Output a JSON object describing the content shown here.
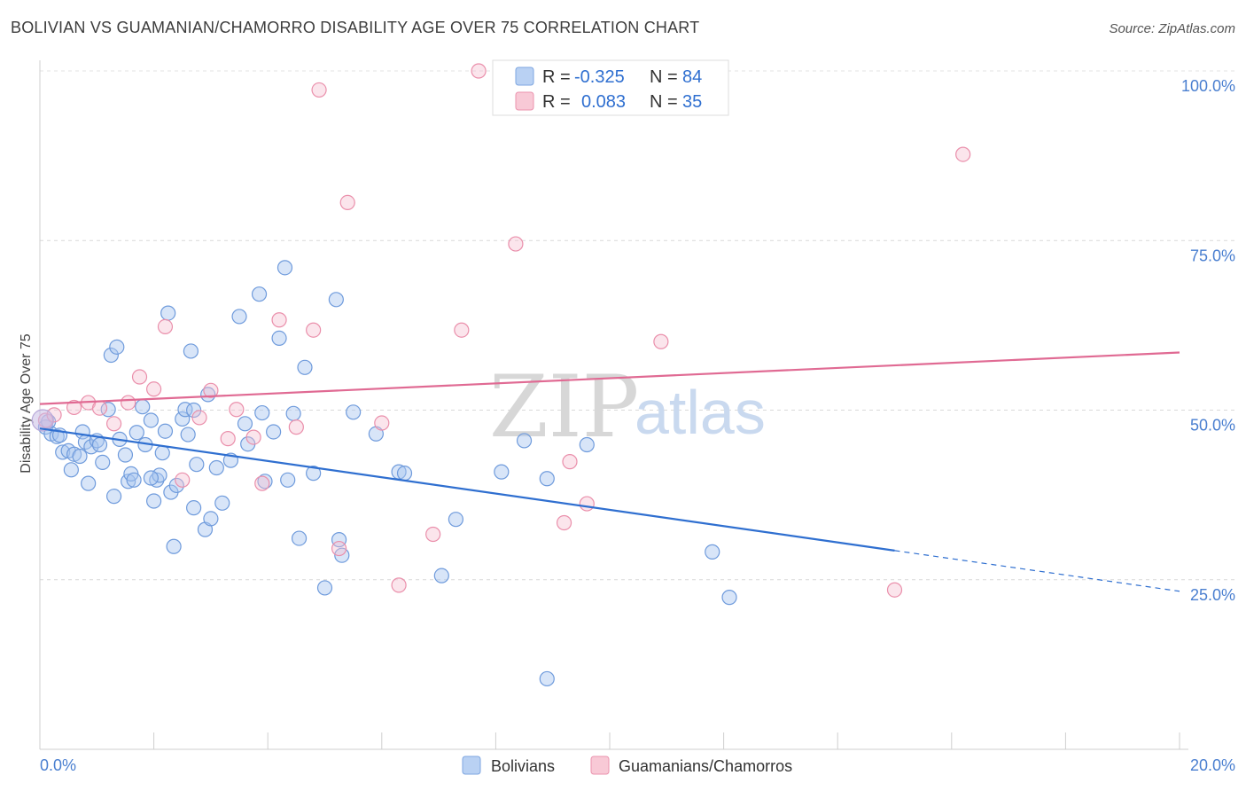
{
  "header": {
    "title": "BOLIVIAN VS GUAMANIAN/CHAMORRO DISABILITY AGE OVER 75 CORRELATION CHART",
    "source": "Source: ZipAtlas.com"
  },
  "watermark": {
    "part1": "ZIP",
    "part2": "atlas"
  },
  "legend_top": [
    {
      "r_label": "R =",
      "r_value": "-0.325",
      "n_label": "N =",
      "n_value": "84",
      "color": "#a9c6f0"
    },
    {
      "r_label": "R =",
      "r_value": "0.083",
      "n_label": "N =",
      "n_value": "35",
      "color": "#f4b6c8"
    }
  ],
  "legend_bottom": [
    {
      "label": "Bolivians",
      "color": "#a9c6f0"
    },
    {
      "label": "Guamanians/Chamorros",
      "color": "#f4b6c8"
    }
  ],
  "chart_data": {
    "type": "scatter",
    "title": "BOLIVIAN VS GUAMANIAN/CHAMORRO DISABILITY AGE OVER 75 CORRELATION CHART",
    "ylabel": "Disability Age Over 75",
    "xlabel": "",
    "xlim": [
      0,
      20
    ],
    "ylim": [
      0,
      103
    ],
    "x_tick_labels": [
      "0.0%",
      "20.0%"
    ],
    "y_tick_labels": [
      "25.0%",
      "50.0%",
      "75.0%",
      "100.0%"
    ],
    "y_ticks": [
      25,
      50,
      75,
      100
    ],
    "grid": "horizontal dashed",
    "legend_position": "top-center",
    "colors": {
      "bolivians": "#5b8fd6",
      "guamanians": "#e8799c",
      "bolivians_line": "#2f6fd0",
      "guamanians_line": "#e06a93"
    },
    "series": [
      {
        "name": "Bolivians",
        "r": -0.325,
        "n": 84,
        "trend": {
          "x0": 0,
          "y0": 47.3,
          "x1": 15.0,
          "y1": 29.3,
          "dash_to_x": 20,
          "dash_to_y": 23.3
        },
        "points": [
          [
            0.1,
            47.5
          ],
          [
            0.2,
            46.5
          ],
          [
            0.3,
            46.1
          ],
          [
            0.4,
            43.8
          ],
          [
            0.35,
            46.3
          ],
          [
            0.5,
            44.0
          ],
          [
            0.6,
            43.5
          ],
          [
            0.55,
            41.2
          ],
          [
            0.7,
            43.2
          ],
          [
            0.75,
            46.8
          ],
          [
            0.8,
            45.3
          ],
          [
            0.85,
            39.2
          ],
          [
            0.9,
            44.6
          ],
          [
            1.0,
            45.5
          ],
          [
            1.05,
            44.9
          ],
          [
            1.1,
            42.3
          ],
          [
            1.2,
            50.1
          ],
          [
            1.25,
            58.1
          ],
          [
            1.3,
            37.3
          ],
          [
            1.35,
            59.3
          ],
          [
            1.4,
            45.7
          ],
          [
            1.5,
            43.4
          ],
          [
            1.55,
            39.5
          ],
          [
            1.6,
            40.6
          ],
          [
            1.65,
            39.7
          ],
          [
            1.7,
            46.7
          ],
          [
            1.8,
            50.5
          ],
          [
            1.85,
            44.9
          ],
          [
            1.95,
            48.5
          ],
          [
            2.0,
            36.6
          ],
          [
            2.05,
            39.7
          ],
          [
            2.1,
            40.4
          ],
          [
            2.15,
            43.7
          ],
          [
            2.2,
            46.9
          ],
          [
            2.25,
            64.3
          ],
          [
            2.3,
            37.9
          ],
          [
            2.35,
            29.9
          ],
          [
            2.4,
            38.9
          ],
          [
            2.5,
            48.7
          ],
          [
            2.55,
            50.1
          ],
          [
            2.6,
            46.4
          ],
          [
            2.65,
            58.7
          ],
          [
            2.7,
            35.6
          ],
          [
            2.75,
            42.0
          ],
          [
            2.9,
            32.4
          ],
          [
            2.95,
            52.3
          ],
          [
            3.0,
            34.0
          ],
          [
            3.1,
            41.5
          ],
          [
            3.2,
            36.3
          ],
          [
            3.35,
            42.6
          ],
          [
            3.5,
            63.8
          ],
          [
            3.65,
            45.0
          ],
          [
            3.85,
            67.1
          ],
          [
            3.9,
            49.6
          ],
          [
            3.95,
            39.5
          ],
          [
            4.1,
            46.8
          ],
          [
            4.2,
            60.6
          ],
          [
            4.3,
            71.0
          ],
          [
            4.35,
            39.7
          ],
          [
            4.45,
            49.5
          ],
          [
            4.55,
            31.1
          ],
          [
            4.65,
            56.3
          ],
          [
            4.8,
            40.7
          ],
          [
            5.0,
            23.8
          ],
          [
            5.2,
            66.3
          ],
          [
            5.25,
            30.9
          ],
          [
            5.3,
            28.6
          ],
          [
            5.5,
            49.7
          ],
          [
            5.9,
            46.5
          ],
          [
            6.3,
            40.9
          ],
          [
            6.4,
            40.7
          ],
          [
            7.05,
            25.6
          ],
          [
            7.3,
            33.9
          ],
          [
            8.1,
            40.9
          ],
          [
            8.5,
            45.5
          ],
          [
            8.9,
            39.9
          ],
          [
            9.6,
            44.9
          ],
          [
            8.9,
            10.4
          ],
          [
            11.8,
            29.1
          ],
          [
            12.1,
            22.4
          ],
          [
            0.15,
            48.3
          ],
          [
            1.95,
            40.0
          ],
          [
            2.7,
            50.0
          ],
          [
            3.6,
            48.0
          ]
        ]
      },
      {
        "name": "Guamanians/Chamorros",
        "r": 0.083,
        "n": 35,
        "trend": {
          "x0": 0,
          "y0": 50.9,
          "x1": 20,
          "y1": 58.5
        },
        "points": [
          [
            0.1,
            48.5
          ],
          [
            0.25,
            49.3
          ],
          [
            0.6,
            50.4
          ],
          [
            0.85,
            51.1
          ],
          [
            1.05,
            50.3
          ],
          [
            1.3,
            48.0
          ],
          [
            1.55,
            51.1
          ],
          [
            1.75,
            54.9
          ],
          [
            2.0,
            53.1
          ],
          [
            2.2,
            62.3
          ],
          [
            2.5,
            39.7
          ],
          [
            2.8,
            48.9
          ],
          [
            3.0,
            52.9
          ],
          [
            3.3,
            45.8
          ],
          [
            3.45,
            50.1
          ],
          [
            3.75,
            46.0
          ],
          [
            3.9,
            39.2
          ],
          [
            4.2,
            63.3
          ],
          [
            4.5,
            47.5
          ],
          [
            4.8,
            61.8
          ],
          [
            4.9,
            97.2
          ],
          [
            5.25,
            29.6
          ],
          [
            5.4,
            80.6
          ],
          [
            6.0,
            48.1
          ],
          [
            6.3,
            24.2
          ],
          [
            6.9,
            31.7
          ],
          [
            7.4,
            61.8
          ],
          [
            7.7,
            100.0
          ],
          [
            8.35,
            74.5
          ],
          [
            9.2,
            33.4
          ],
          [
            9.3,
            42.4
          ],
          [
            9.6,
            36.2
          ],
          [
            10.9,
            60.1
          ],
          [
            15.0,
            23.5
          ],
          [
            16.2,
            87.7
          ]
        ]
      }
    ]
  }
}
